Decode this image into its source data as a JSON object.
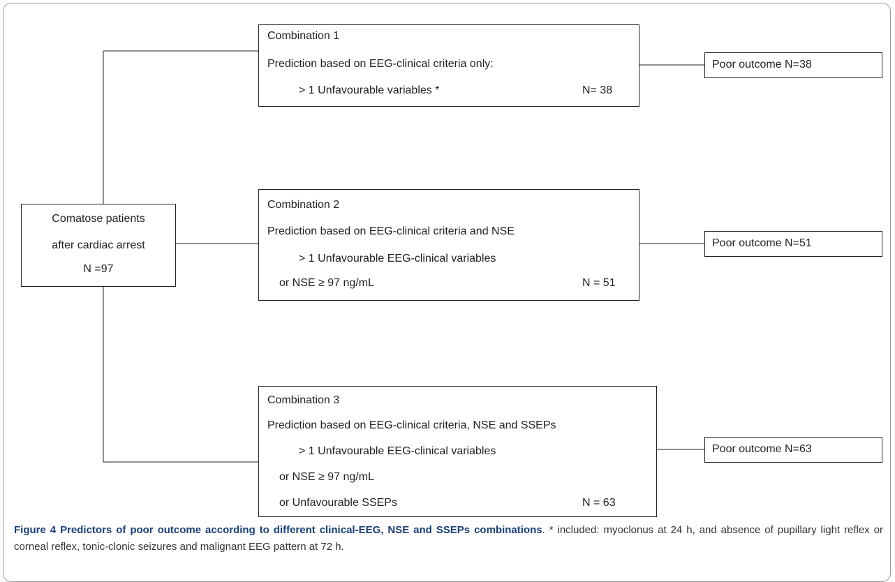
{
  "start": {
    "lines": [
      "Comatose patients",
      "after cardiac arrest",
      "N =97"
    ]
  },
  "combinations": [
    {
      "title": "Combination 1",
      "prediction": "Prediction  based on EEG-clinical criteria only:",
      "items": [
        "> 1  Unfavourable variables *"
      ],
      "count": "N= 38"
    },
    {
      "title": "Combination 2",
      "prediction": "Prediction based on EEG-clinical criteria and NSE",
      "items": [
        "> 1 Unfavourable EEG-clinical variables",
        "or  NSE ≥ 97 ng/mL"
      ],
      "count": "N = 51"
    },
    {
      "title": "Combination 3",
      "prediction": "Prediction based on EEG-clinical criteria,  NSE and SSEPs",
      "items": [
        "> 1 Unfavourable EEG-clinical variables",
        "or  NSE ≥ 97 ng/mL",
        "or Unfavourable SSEPs"
      ],
      "count": "N = 63"
    }
  ],
  "outcomes": [
    "Poor outcome N=38",
    "Poor outcome N=51",
    "Poor outcome N=63"
  ],
  "caption": {
    "label": "Figure 4",
    "title": "Predictors of poor outcome according to different clinical-EEG, NSE and SSEPs combinations",
    "text": ". * included: myoclonus at 24 h, and absence of pupillary light reflex or corneal reflex, tonic-clonic seizures and malignant EEG pattern at 72 h."
  }
}
